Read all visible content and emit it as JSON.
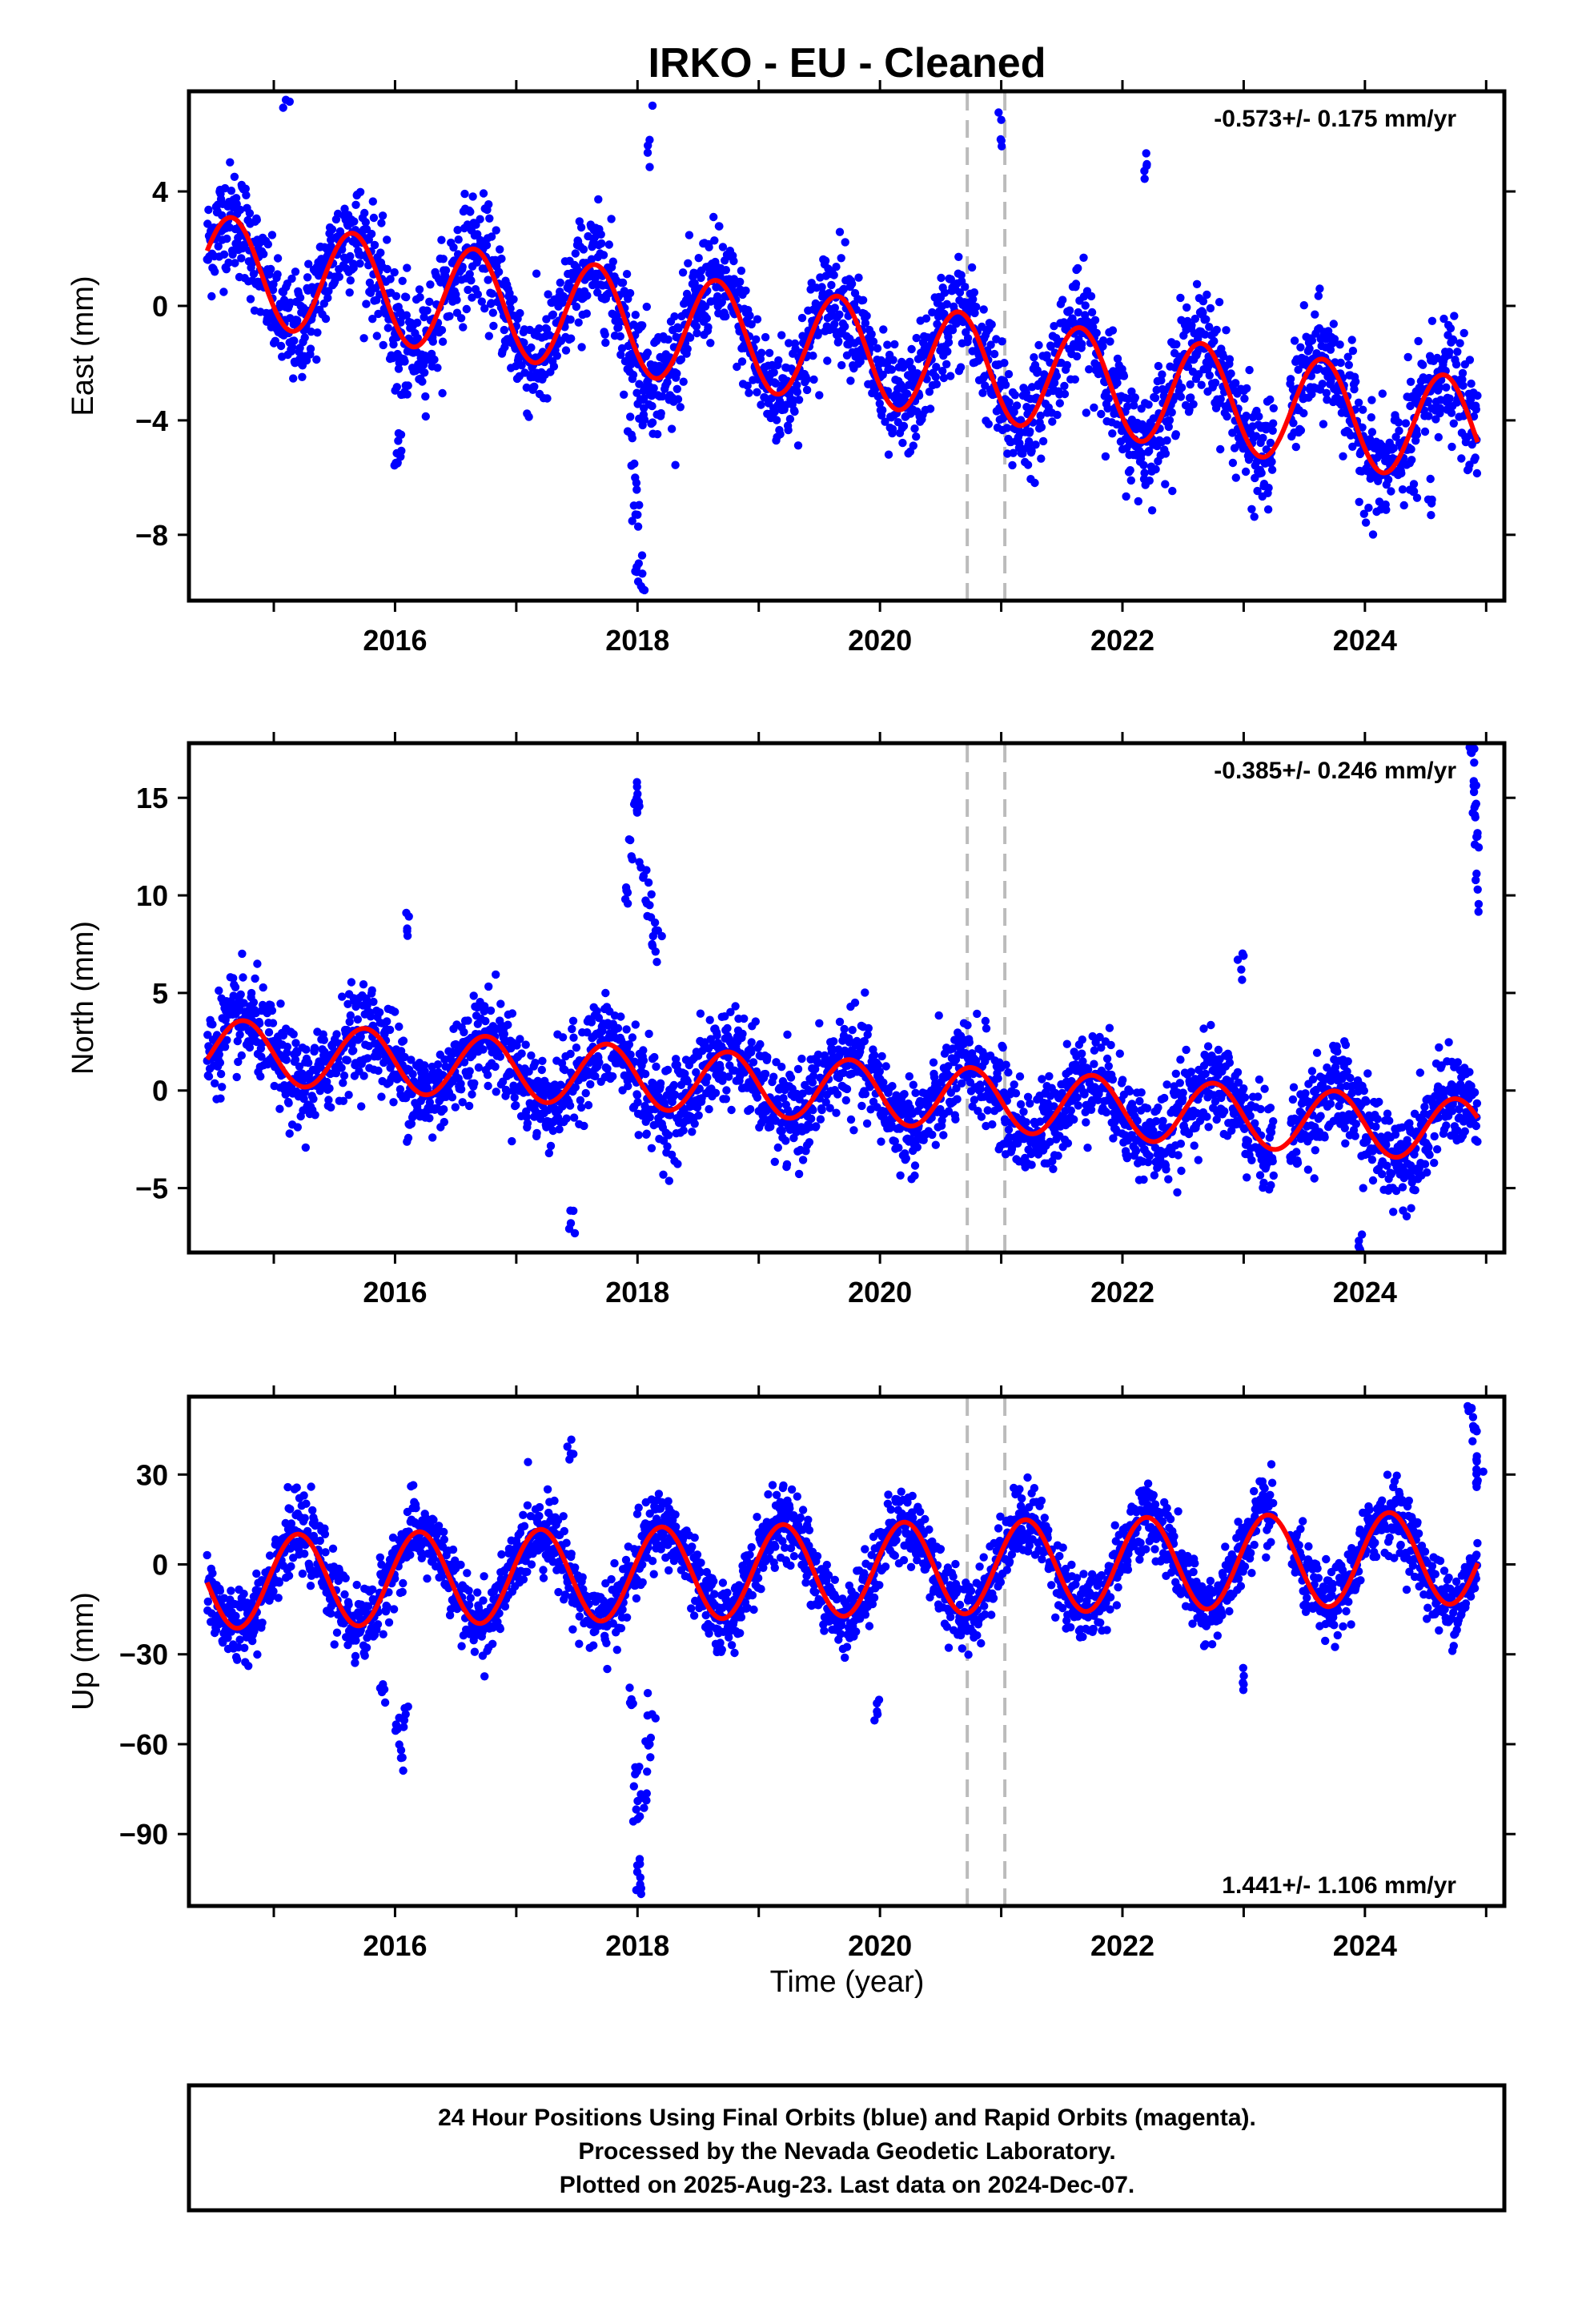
{
  "title": "IRKO  - EU - Cleaned",
  "colors": {
    "final_orbits": "#0000ff",
    "fit": "#ff0000",
    "offset_line": "#bbbbbb",
    "frame": "#000000"
  },
  "chart_data": [
    {
      "type": "scatter",
      "component": "east",
      "ylabel": "East (mm)",
      "xlabel": "",
      "xlim": [
        2014.3,
        2025.15
      ],
      "ylim": [
        -10.3,
        7.5
      ],
      "yticks": [
        -8,
        -4,
        0,
        4
      ],
      "xticks": [
        2016,
        2018,
        2020,
        2022,
        2024
      ],
      "rate": "-0.573+/- 0.175 mm/yr",
      "rate_position": "top-right",
      "offset_epochs": [
        2020.72,
        2021.03
      ],
      "fit": {
        "offset": 1.35,
        "trend": -0.55,
        "amplitude": 1.85,
        "period_yr": 1.0,
        "phase_yr": 0.2,
        "start": 2014.45,
        "end": 2024.93
      },
      "scatter_sd": 0.95,
      "outliers": [
        {
          "x": 2016.02,
          "y": -5.5
        },
        {
          "x": 2016.05,
          "y": -4.5
        },
        {
          "x": 2016.08,
          "y": -3.0
        },
        {
          "x": 2016.03,
          "y": -2.2
        },
        {
          "x": 2017.98,
          "y": -6.0
        },
        {
          "x": 2018.0,
          "y": -7.3
        },
        {
          "x": 2018.01,
          "y": -9.0
        },
        {
          "x": 2018.03,
          "y": -9.8
        },
        {
          "x": 2017.95,
          "y": -4.5
        },
        {
          "x": 2018.05,
          "y": -3.8
        },
        {
          "x": 2015.1,
          "y": 7.2
        },
        {
          "x": 2018.1,
          "y": 5.8
        },
        {
          "x": 2021.0,
          "y": 6.5
        },
        {
          "x": 2022.2,
          "y": 4.9
        },
        {
          "x": 2024.55,
          "y": -6.9
        },
        {
          "x": 2024.4,
          "y": -6.5
        }
      ]
    },
    {
      "type": "scatter",
      "component": "north",
      "ylabel": "North (mm)",
      "xlabel": "",
      "xlim": [
        2014.3,
        2025.15
      ],
      "ylim": [
        -8.3,
        17.8
      ],
      "yticks": [
        -5,
        0,
        5,
        10,
        15
      ],
      "xticks": [
        2016,
        2018,
        2020,
        2022,
        2024
      ],
      "rate": "-0.385+/- 0.246 mm/yr",
      "rate_position": "top-right",
      "offset_epochs": [
        2020.72,
        2021.03
      ],
      "fit": {
        "offset": 2.1,
        "trend": -0.4,
        "amplitude": 1.6,
        "period_yr": 1.0,
        "phase_yr": 0.3,
        "start": 2014.45,
        "end": 2024.93
      },
      "scatter_sd": 1.2,
      "outliers": [
        {
          "x": 2017.95,
          "y": 12.0
        },
        {
          "x": 2017.98,
          "y": 14.8
        },
        {
          "x": 2018.0,
          "y": 15.2
        },
        {
          "x": 2018.05,
          "y": 11.0
        },
        {
          "x": 2018.1,
          "y": 9.5
        },
        {
          "x": 2018.15,
          "y": 8.2
        },
        {
          "x": 2017.9,
          "y": 9.8
        },
        {
          "x": 2018.12,
          "y": 7.5
        },
        {
          "x": 2016.1,
          "y": 8.3
        },
        {
          "x": 2022.98,
          "y": 6.2
        },
        {
          "x": 2017.45,
          "y": -6.8
        },
        {
          "x": 2023.95,
          "y": -7.7
        },
        {
          "x": 2024.88,
          "y": 17.3
        },
        {
          "x": 2024.9,
          "y": 15.3
        },
        {
          "x": 2024.91,
          "y": 14.0
        },
        {
          "x": 2024.92,
          "y": 13.0
        },
        {
          "x": 2024.93,
          "y": 10.3
        }
      ]
    },
    {
      "type": "scatter",
      "component": "up",
      "ylabel": "Up (mm)",
      "xlabel": "Time (year)",
      "xlim": [
        2014.3,
        2025.15
      ],
      "ylim": [
        -114,
        56
      ],
      "yticks": [
        -90,
        -60,
        -30,
        0,
        30
      ],
      "xticks": [
        2016,
        2018,
        2020,
        2022,
        2024
      ],
      "rate": "1.441+/- 1.106 mm/yr",
      "rate_position": "bottom-right",
      "offset_epochs": [
        2020.72,
        2021.03
      ],
      "fit": {
        "offset": -6,
        "trend": 0.8,
        "amplitude": 15.5,
        "period_yr": 1.0,
        "phase_yr": 0.75,
        "start": 2014.45,
        "end": 2024.93
      },
      "scatter_sd": 6,
      "outliers": [
        {
          "x": 2016.05,
          "y": -62
        },
        {
          "x": 2016.02,
          "y": -55
        },
        {
          "x": 2016.08,
          "y": -48
        },
        {
          "x": 2015.9,
          "y": -40
        },
        {
          "x": 2017.95,
          "y": -45
        },
        {
          "x": 2017.98,
          "y": -70
        },
        {
          "x": 2018.0,
          "y": -85
        },
        {
          "x": 2018.02,
          "y": -100
        },
        {
          "x": 2018.03,
          "y": -110
        },
        {
          "x": 2018.05,
          "y": -78
        },
        {
          "x": 2018.1,
          "y": -60
        },
        {
          "x": 2018.12,
          "y": -50
        },
        {
          "x": 2019.98,
          "y": -50
        },
        {
          "x": 2023.0,
          "y": -40
        },
        {
          "x": 2017.45,
          "y": 37
        },
        {
          "x": 2024.88,
          "y": 52
        },
        {
          "x": 2024.9,
          "y": 45
        },
        {
          "x": 2024.92,
          "y": 35
        },
        {
          "x": 2024.93,
          "y": 28
        }
      ]
    }
  ],
  "footer": {
    "line1": "24 Hour Positions Using Final Orbits (blue) and Rapid Orbits (magenta).",
    "line2": "Processed by the Nevada Geodetic Laboratory.",
    "line3": "Plotted on 2025-Aug-23. Last data on 2024-Dec-07."
  }
}
